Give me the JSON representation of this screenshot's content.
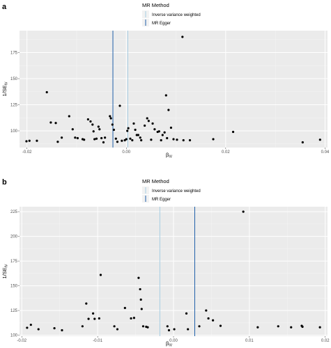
{
  "chart_data": [
    {
      "type": "scatter",
      "panel_label": "a",
      "xlabel": "β",
      "xlabel_sub": "IV",
      "ylabel": "1/SE",
      "ylabel_sub": "IV",
      "xlim": [
        -0.0215,
        0.0405
      ],
      "ylim": [
        84,
        196
      ],
      "x_ticks": [
        -0.02,
        0.0,
        0.02,
        0.04
      ],
      "x_tick_labels": [
        "-0.02",
        "0.00",
        "0.02",
        "0.04"
      ],
      "y_ticks": [
        100,
        125,
        150,
        175
      ],
      "y_tick_labels": [
        "100",
        "125",
        "150",
        "175"
      ],
      "grid": true,
      "legend": {
        "title": "MR Method",
        "position": "top",
        "entries": [
          {
            "label": "Inverse variance weighted",
            "color": "#a6cee3"
          },
          {
            "label": "MR Egger",
            "color": "#1f5fa8"
          }
        ]
      },
      "vlines": [
        {
          "method": "Inverse variance weighted",
          "x": 0.0003,
          "color": "#a6cee3"
        },
        {
          "method": "MR Egger",
          "x": -0.0027,
          "color": "#1f5fa8"
        }
      ],
      "points": [
        [
          -0.0201,
          90
        ],
        [
          -0.0195,
          90.5
        ],
        [
          -0.018,
          90.5
        ],
        [
          -0.016,
          137
        ],
        [
          -0.0152,
          108
        ],
        [
          -0.0142,
          107.5
        ],
        [
          -0.0138,
          89.5
        ],
        [
          -0.013,
          93.5
        ],
        [
          -0.0115,
          114
        ],
        [
          -0.0108,
          101.5
        ],
        [
          -0.0103,
          93.5
        ],
        [
          -0.0098,
          93
        ],
        [
          -0.0088,
          92
        ],
        [
          -0.0085,
          91.5
        ],
        [
          -0.0077,
          111
        ],
        [
          -0.0072,
          109
        ],
        [
          -0.0068,
          106
        ],
        [
          -0.0066,
          99.5
        ],
        [
          -0.0064,
          92
        ],
        [
          -0.006,
          92.5
        ],
        [
          -0.0056,
          104
        ],
        [
          -0.0054,
          101.5
        ],
        [
          -0.005,
          93
        ],
        [
          -0.0046,
          89
        ],
        [
          -0.0043,
          93.5
        ],
        [
          -0.0033,
          114
        ],
        [
          -0.0031,
          112
        ],
        [
          -0.0028,
          106
        ],
        [
          -0.0025,
          101
        ],
        [
          -0.0021,
          92.5
        ],
        [
          -0.0018,
          89.5
        ],
        [
          -0.0013,
          124
        ],
        [
          -0.0009,
          90.5
        ],
        [
          -0.0003,
          91
        ],
        [
          0.0,
          92
        ],
        [
          0.0002,
          100
        ],
        [
          0.0004,
          102.5
        ],
        [
          0.0008,
          92.5
        ],
        [
          0.0012,
          91
        ],
        [
          0.0015,
          107
        ],
        [
          0.0018,
          101
        ],
        [
          0.0021,
          96
        ],
        [
          0.0024,
          96
        ],
        [
          0.0028,
          93.5
        ],
        [
          0.003,
          91
        ],
        [
          0.0037,
          105
        ],
        [
          0.0042,
          112
        ],
        [
          0.0045,
          109.5
        ],
        [
          0.005,
          91.5
        ],
        [
          0.0053,
          107
        ],
        [
          0.0057,
          101.5
        ],
        [
          0.0063,
          99
        ],
        [
          0.0066,
          99.5
        ],
        [
          0.007,
          91
        ],
        [
          0.0073,
          96
        ],
        [
          0.0077,
          98.5
        ],
        [
          0.008,
          134
        ],
        [
          0.0082,
          93
        ],
        [
          0.0085,
          120
        ],
        [
          0.009,
          103
        ],
        [
          0.0095,
          92
        ],
        [
          0.0102,
          91.5
        ],
        [
          0.0113,
          190
        ],
        [
          0.0115,
          91
        ],
        [
          0.0128,
          91
        ],
        [
          0.0175,
          92
        ],
        [
          0.0215,
          99
        ],
        [
          0.0355,
          89
        ],
        [
          0.039,
          91.5
        ]
      ]
    },
    {
      "type": "scatter",
      "panel_label": "b",
      "xlabel": "β",
      "xlabel_sub": "IV",
      "ylabel": "1/SE",
      "ylabel_sub": "IV",
      "xlim": [
        -0.0203,
        0.0203
      ],
      "ylim": [
        99,
        230
      ],
      "x_ticks": [
        -0.02,
        -0.01,
        0.0,
        0.01,
        0.02
      ],
      "x_tick_labels": [
        "-0.02",
        "-0.01",
        "0.00",
        "0.01",
        "0.02"
      ],
      "y_ticks": [
        100,
        125,
        150,
        175,
        200,
        225
      ],
      "y_tick_labels": [
        "100",
        "125",
        "150",
        "175",
        "200",
        "225"
      ],
      "grid": true,
      "legend": {
        "title": "MR Method",
        "position": "top",
        "entries": [
          {
            "label": "Inverse variance weighted",
            "color": "#a6cee3"
          },
          {
            "label": "MR Egger",
            "color": "#1f5fa8"
          }
        ]
      },
      "vlines": [
        {
          "method": "Inverse variance weighted",
          "x": -0.0018,
          "color": "#a6cee3"
        },
        {
          "method": "MR Egger",
          "x": 0.0028,
          "color": "#1f5fa8"
        }
      ],
      "points": [
        [
          -0.0193,
          107.5
        ],
        [
          -0.0188,
          110.5
        ],
        [
          -0.0178,
          106
        ],
        [
          -0.0157,
          107
        ],
        [
          -0.0147,
          105
        ],
        [
          -0.012,
          109
        ],
        [
          -0.0115,
          132
        ],
        [
          -0.0112,
          116.5
        ],
        [
          -0.0106,
          122
        ],
        [
          -0.0104,
          116.5
        ],
        [
          -0.0098,
          117
        ],
        [
          -0.0096,
          161
        ],
        [
          -0.0078,
          109
        ],
        [
          -0.0074,
          106
        ],
        [
          -0.0064,
          127.5
        ],
        [
          -0.0056,
          117
        ],
        [
          -0.0052,
          117.5
        ],
        [
          -0.0046,
          158
        ],
        [
          -0.0044,
          146.5
        ],
        [
          -0.0043,
          136
        ],
        [
          -0.0042,
          126.5
        ],
        [
          -0.004,
          109
        ],
        [
          -0.0036,
          108.5
        ],
        [
          -0.0034,
          108
        ],
        [
          -0.0008,
          109
        ],
        [
          -0.0006,
          105
        ],
        [
          0.0001,
          106
        ],
        [
          0.0017,
          122
        ],
        [
          0.0019,
          106
        ],
        [
          0.0034,
          109
        ],
        [
          0.0043,
          125
        ],
        [
          0.0046,
          117
        ],
        [
          0.0052,
          115
        ],
        [
          0.0062,
          109.5
        ],
        [
          0.0092,
          225
        ],
        [
          0.0111,
          108
        ],
        [
          0.0138,
          109
        ],
        [
          0.0155,
          108
        ],
        [
          0.0169,
          109.5
        ],
        [
          0.017,
          108.5
        ],
        [
          0.0193,
          108
        ]
      ]
    }
  ]
}
